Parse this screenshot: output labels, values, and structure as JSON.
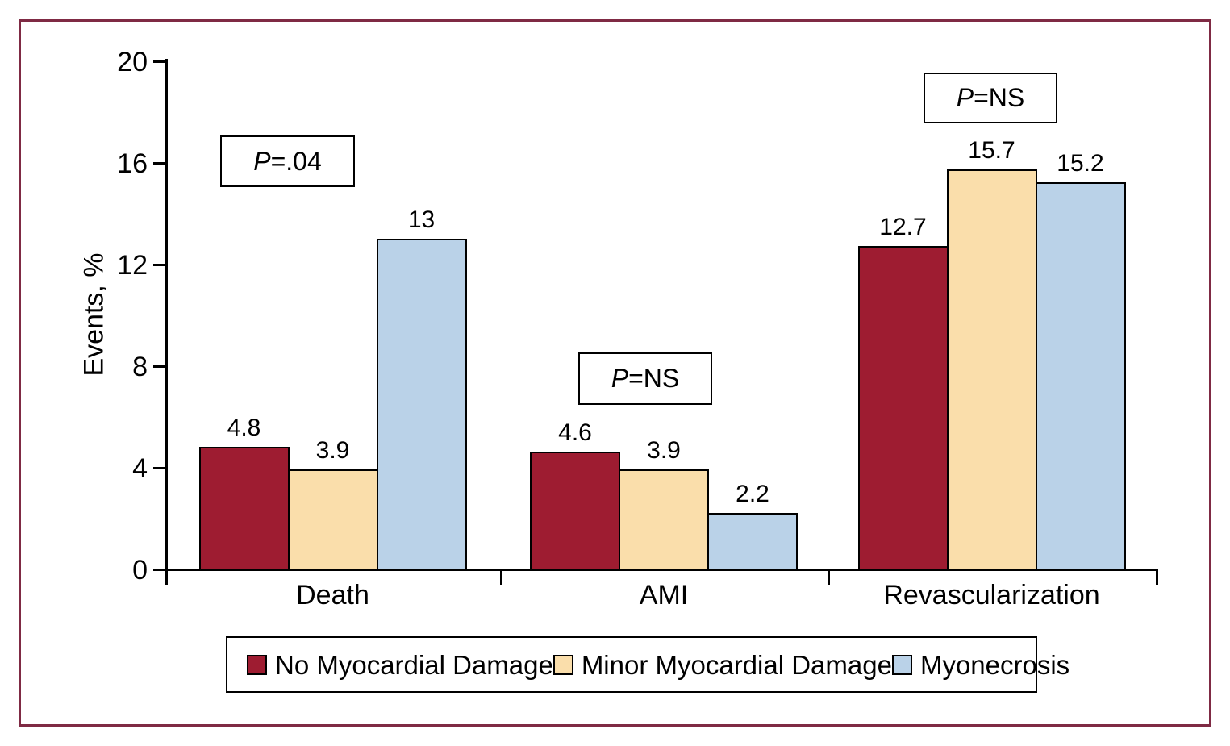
{
  "figure": {
    "frame_color": "#7F2A44",
    "background": "#FFFFFF"
  },
  "chart_data": {
    "type": "bar",
    "title": "",
    "xlabel": "",
    "ylabel": "Events, %",
    "ylim": [
      0,
      20
    ],
    "yticks": [
      "0",
      "4",
      "8",
      "12",
      "16",
      "20"
    ],
    "grid": false,
    "categories": [
      "Death",
      "AMI",
      "Revascularization"
    ],
    "series": [
      {
        "name": "No Myocardial Damage",
        "color": "#9E1C31",
        "values": [
          4.8,
          4.6,
          12.7
        ],
        "labels": [
          "4.8",
          "4.6",
          "12.7"
        ]
      },
      {
        "name": "Minor Myocardial Damage",
        "color": "#FADEAB",
        "values": [
          3.9,
          3.9,
          15.7
        ],
        "labels": [
          "3.9",
          "3.9",
          "15.7"
        ]
      },
      {
        "name": "Myonecrosis",
        "color": "#BAD2E8",
        "values": [
          13,
          2.2,
          15.2
        ],
        "labels": [
          "13",
          "2.2",
          "15.2"
        ]
      }
    ],
    "annotations": [
      {
        "prefix": "P",
        "text": "=.04",
        "category": "Death"
      },
      {
        "prefix": "P",
        "text": "=NS",
        "category": "AMI"
      },
      {
        "prefix": "P",
        "text": "=NS",
        "category": "Revascularization"
      }
    ],
    "legend": {
      "position": "bottom",
      "entries": [
        "No Myocardial Damage",
        "Minor Myocardial Damage",
        "Myonecrosis"
      ]
    }
  }
}
